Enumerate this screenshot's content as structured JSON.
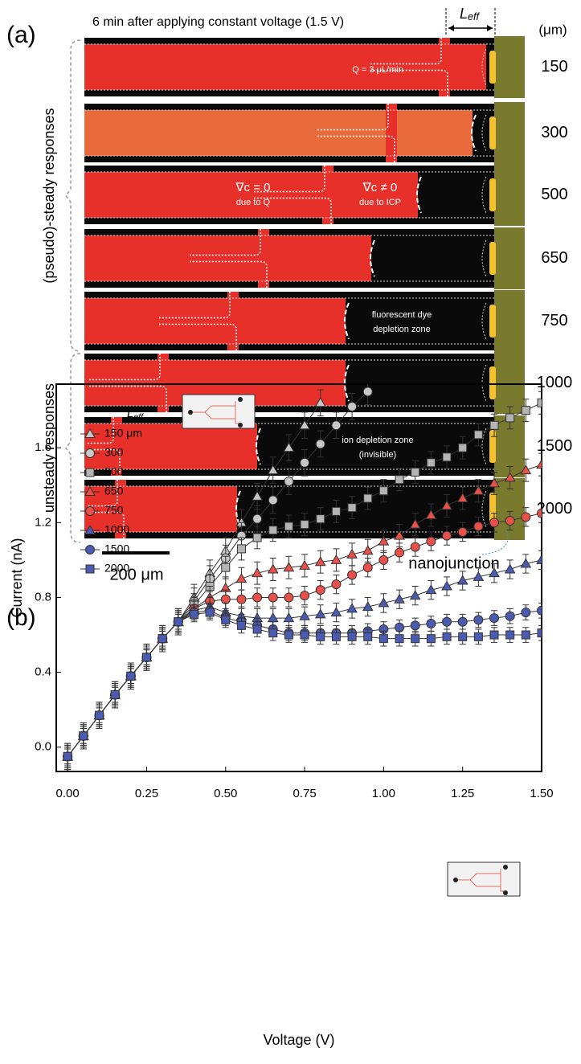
{
  "panel_a": {
    "label": "(a)",
    "title": "6 min after applying constant voltage (1.5 V)",
    "leff": {
      "main": "L",
      "sub": "eff"
    },
    "unit": "(μm)",
    "rows": [
      150,
      300,
      500,
      650,
      750,
      1000,
      1500,
      2000
    ],
    "brackets": [
      "(pseudo)-steady responses",
      "unsteady responses"
    ],
    "annotations": [
      "Q = 3 μL/min",
      "∇c = 0",
      "due to Q",
      "∇c ≠ 0",
      "due to ICP",
      "fluorescent dye",
      "depletion zone",
      "ion depletion zone",
      "(invisible)"
    ],
    "scale_bar": "200 μm",
    "nanojunction": "nanojunction"
  },
  "chart_data": {
    "type": "line",
    "panel_label": "(b)",
    "x_label": "Voltage (V)",
    "y_label": "Current (nA)",
    "legend_title": {
      "main": "L",
      "sub": "eff"
    },
    "x": [
      0,
      0.05,
      0.1,
      0.15,
      0.2,
      0.25,
      0.3,
      0.35,
      0.4,
      0.45,
      0.5,
      0.55,
      0.6,
      0.65,
      0.7,
      0.75,
      0.8,
      0.85,
      0.9,
      0.95,
      1.0,
      1.05,
      1.1,
      1.15,
      1.2,
      1.25,
      1.3,
      1.35,
      1.4,
      1.45,
      1.5
    ],
    "xlim": [
      -0.036,
      1.5
    ],
    "ylim": [
      -0.13,
      1.94
    ],
    "xticks": [
      {
        "value": 0,
        "label": "0.00"
      },
      {
        "value": 0.25,
        "label": "0.25"
      },
      {
        "value": 0.5,
        "label": "0.50"
      },
      {
        "value": 0.75,
        "label": "0.75"
      },
      {
        "value": 1.0,
        "label": "1.00"
      },
      {
        "value": 1.25,
        "label": "1.25"
      },
      {
        "value": 1.5,
        "label": "1.50"
      }
    ],
    "yticks": [
      {
        "value": 0,
        "label": "0.0"
      },
      {
        "value": 0.4,
        "label": "0.4"
      },
      {
        "value": 0.8,
        "label": "0.8"
      },
      {
        "value": 1.2,
        "label": "1.2"
      },
      {
        "value": 1.6,
        "label": "1.6"
      }
    ],
    "series": [
      {
        "name": "150 μm",
        "color": "#c8c8c8",
        "marker": "triangle",
        "error": 0.07,
        "values": [
          -0.05,
          0.06,
          0.17,
          0.28,
          0.38,
          0.48,
          0.58,
          0.67,
          0.8,
          0.93,
          1.05,
          1.2,
          1.34,
          1.48,
          1.6,
          1.72,
          1.84,
          null,
          null,
          null,
          null,
          null,
          null,
          null,
          null,
          null,
          null,
          null,
          null,
          null,
          null
        ]
      },
      {
        "name": "300",
        "color": "#c8c8c8",
        "marker": "circle",
        "error": 0.07,
        "values": [
          -0.05,
          0.06,
          0.17,
          0.28,
          0.38,
          0.48,
          0.58,
          0.67,
          0.78,
          0.9,
          1.01,
          1.13,
          1.22,
          1.32,
          1.42,
          1.52,
          1.62,
          1.72,
          1.82,
          1.9,
          null,
          null,
          null,
          null,
          null,
          null,
          null,
          null,
          null,
          null,
          null
        ]
      },
      {
        "name": "500",
        "color": "#b4b4b4",
        "marker": "square",
        "error": 0.06,
        "values": [
          -0.05,
          0.06,
          0.17,
          0.28,
          0.38,
          0.48,
          0.58,
          0.67,
          0.76,
          0.86,
          0.96,
          1.06,
          1.12,
          1.16,
          1.18,
          1.19,
          1.22,
          1.26,
          1.28,
          1.33,
          1.37,
          1.43,
          1.47,
          1.52,
          1.55,
          1.6,
          1.67,
          1.72,
          1.76,
          1.8,
          1.84
        ]
      },
      {
        "name": "650",
        "color": "#e8504a",
        "marker": "triangle",
        "error": 0.06,
        "values": [
          -0.05,
          0.06,
          0.17,
          0.28,
          0.38,
          0.48,
          0.58,
          0.67,
          0.74,
          0.8,
          0.85,
          0.9,
          0.93,
          0.95,
          0.96,
          0.97,
          0.99,
          1.0,
          1.03,
          1.05,
          1.1,
          1.13,
          1.19,
          1.24,
          1.29,
          1.33,
          1.37,
          1.41,
          1.44,
          1.48,
          1.51
        ]
      },
      {
        "name": "750",
        "color": "#e8504a",
        "marker": "circle",
        "error": 0.05,
        "values": [
          -0.05,
          0.06,
          0.17,
          0.28,
          0.38,
          0.48,
          0.58,
          0.67,
          0.74,
          0.78,
          0.79,
          0.79,
          0.8,
          0.8,
          0.8,
          0.81,
          0.84,
          0.87,
          0.92,
          0.96,
          1.0,
          1.04,
          1.07,
          1.1,
          1.13,
          1.15,
          1.18,
          1.2,
          1.21,
          1.23,
          1.25
        ]
      },
      {
        "name": "1000",
        "color": "#4a5bb0",
        "marker": "triangle",
        "error": 0.05,
        "values": [
          -0.05,
          0.06,
          0.17,
          0.28,
          0.38,
          0.48,
          0.58,
          0.67,
          0.73,
          0.75,
          0.72,
          0.7,
          0.69,
          0.69,
          0.69,
          0.7,
          0.71,
          0.72,
          0.74,
          0.75,
          0.77,
          0.79,
          0.81,
          0.84,
          0.86,
          0.89,
          0.91,
          0.93,
          0.95,
          0.98,
          1.0
        ]
      },
      {
        "name": "1500",
        "color": "#4a5bb0",
        "marker": "circle",
        "error": 0.04,
        "values": [
          -0.05,
          0.06,
          0.17,
          0.28,
          0.38,
          0.48,
          0.58,
          0.67,
          0.72,
          0.73,
          0.69,
          0.67,
          0.65,
          0.63,
          0.61,
          0.61,
          0.61,
          0.61,
          0.61,
          0.62,
          0.63,
          0.64,
          0.65,
          0.66,
          0.67,
          0.67,
          0.68,
          0.69,
          0.7,
          0.72,
          0.73
        ]
      },
      {
        "name": "2000",
        "color": "#4a5bb0",
        "marker": "square",
        "error": 0.04,
        "values": [
          -0.05,
          0.06,
          0.17,
          0.28,
          0.38,
          0.48,
          0.58,
          0.67,
          0.71,
          0.72,
          0.68,
          0.65,
          0.63,
          0.61,
          0.6,
          0.6,
          0.59,
          0.59,
          0.59,
          0.59,
          0.58,
          0.58,
          0.58,
          0.58,
          0.59,
          0.59,
          0.59,
          0.6,
          0.6,
          0.6,
          0.61
        ]
      }
    ]
  }
}
